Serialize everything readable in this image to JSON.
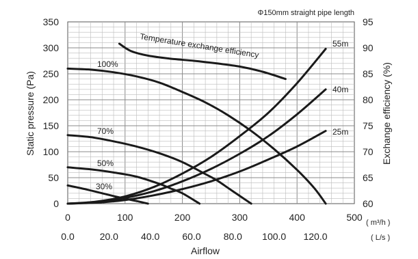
{
  "chart_data": {
    "type": "line",
    "title": "",
    "note": "Φ150mm straight pipe length",
    "x_primary": {
      "ticks": [
        "0",
        "100",
        "200",
        "300",
        "400",
        "500"
      ],
      "unit": "( m³/h )",
      "xlim": [
        0,
        500
      ]
    },
    "x_secondary": {
      "ticks": [
        "0.0",
        "20.0",
        "40.0",
        "60.0",
        "80.0",
        "100.0",
        "120.0"
      ],
      "unit": "( L/s )",
      "label": "Airflow"
    },
    "y_left": {
      "label": "Static pressure (Pa)",
      "ticks": [
        "0",
        "50",
        "100",
        "150",
        "200",
        "250",
        "300",
        "350"
      ],
      "ylim": [
        0,
        350
      ]
    },
    "y_right": {
      "label": "Exchange efficiency (%)",
      "ticks": [
        "60",
        "65",
        "70",
        "75",
        "80",
        "85",
        "90",
        "95"
      ],
      "ylim": [
        60,
        95
      ]
    },
    "grid": true,
    "series": [
      {
        "name": "100%",
        "axis": "pressure",
        "x": [
          0,
          40,
          80,
          120,
          160,
          200,
          240,
          280,
          320,
          360,
          400,
          430,
          450
        ],
        "y": [
          260,
          258,
          253,
          245,
          233,
          215,
          195,
          170,
          140,
          105,
          65,
          30,
          0
        ]
      },
      {
        "name": "70%",
        "axis": "pressure",
        "x": [
          0,
          40,
          80,
          120,
          160,
          200,
          240,
          260,
          280,
          300,
          320
        ],
        "y": [
          132,
          128,
          120,
          110,
          97,
          80,
          57,
          45,
          30,
          15,
          0
        ]
      },
      {
        "name": "50%",
        "axis": "pressure",
        "x": [
          0,
          40,
          80,
          120,
          160,
          180,
          200,
          230
        ],
        "y": [
          70,
          66,
          60,
          52,
          38,
          29,
          20,
          0
        ]
      },
      {
        "name": "30%",
        "axis": "pressure",
        "x": [
          0,
          30,
          60,
          90,
          120,
          140
        ],
        "y": [
          35,
          28,
          20,
          12,
          5,
          0
        ]
      },
      {
        "name": "55m",
        "axis": "pressure",
        "x": [
          0,
          50,
          100,
          150,
          200,
          250,
          300,
          350,
          400,
          450
        ],
        "y": [
          0,
          4,
          14,
          32,
          58,
          90,
          130,
          175,
          232,
          298
        ]
      },
      {
        "name": "40m",
        "axis": "pressure",
        "x": [
          0,
          50,
          100,
          150,
          200,
          250,
          300,
          350,
          400,
          450
        ],
        "y": [
          0,
          3,
          11,
          24,
          43,
          67,
          96,
          130,
          172,
          220
        ]
      },
      {
        "name": "25m",
        "axis": "pressure",
        "x": [
          0,
          50,
          100,
          150,
          200,
          250,
          300,
          350,
          400,
          450
        ],
        "y": [
          0,
          2,
          7,
          16,
          28,
          43,
          62,
          85,
          110,
          140
        ]
      },
      {
        "name": "Temperature exchange efficiency",
        "axis": "efficiency",
        "x": [
          90,
          110,
          140,
          180,
          220,
          260,
          300,
          340,
          380
        ],
        "y": [
          90.8,
          89.4,
          88.5,
          87.9,
          87.5,
          87.0,
          86.4,
          85.4,
          84.0
        ]
      }
    ]
  }
}
